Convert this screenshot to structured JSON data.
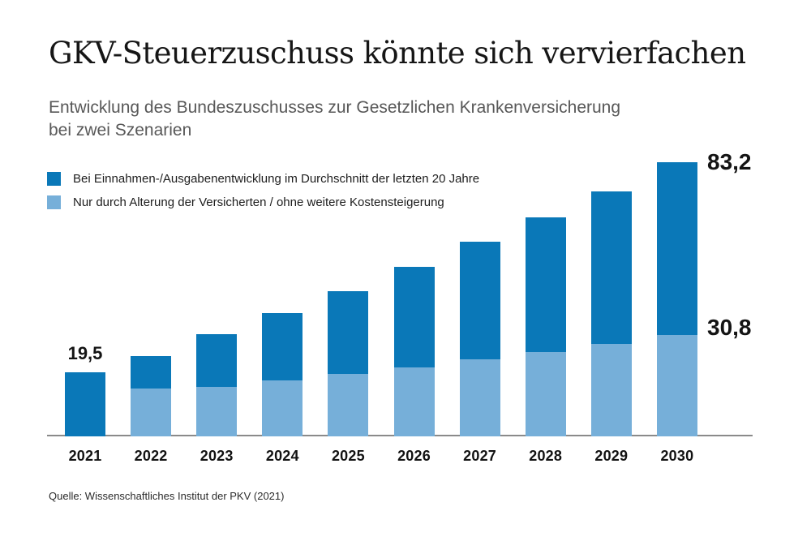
{
  "header": {
    "title": "GKV-Steuerzuschuss könnte sich vervierfachen",
    "subtitle_line1": "Entwicklung des Bundeszuschusses zur Gesetzlichen Krankenversicherung",
    "subtitle_line2": "bei zwei Szenarien"
  },
  "legend": {
    "items": [
      {
        "label": "Bei Einnahmen-/Ausgabenentwicklung im Durchschnitt der letzten 20 Jahre",
        "color": "#0a78b8"
      },
      {
        "label": "Nur durch Alterung der Versicherten / ohne weitere Kostensteigerung",
        "color": "#76afd9"
      }
    ]
  },
  "chart_data": {
    "type": "bar",
    "title": "GKV-Steuerzuschuss könnte sich vervierfachen",
    "subtitle": "Entwicklung des Bundeszuschusses zur Gesetzlichen Krankenversicherung bei zwei Szenarien",
    "categories": [
      "2021",
      "2022",
      "2023",
      "2024",
      "2025",
      "2026",
      "2027",
      "2028",
      "2029",
      "2030"
    ],
    "series": [
      {
        "name": "Bei Einnahmen-/Ausgabenentwicklung im Durchschnitt der letzten 20 Jahre",
        "color": "#0a78b8",
        "values": [
          19.5,
          24.5,
          31.0,
          37.5,
          44.0,
          51.5,
          59.0,
          66.5,
          74.5,
          83.2
        ]
      },
      {
        "name": "Nur durch Alterung der Versicherten / ohne weitere Kostensteigerung",
        "color": "#76afd9",
        "values": [
          null,
          14.5,
          15.0,
          17.0,
          19.0,
          21.0,
          23.5,
          25.5,
          28.0,
          30.8
        ]
      }
    ],
    "bar_encoding": "overlay-from-baseline: series 1 is full bar height, series 2 overlays the lower portion of the bar",
    "annotations": [
      {
        "text": "19,5",
        "target": "2021 total"
      },
      {
        "text": "83,2",
        "target": "2030 total"
      },
      {
        "text": "30,8",
        "target": "2030 aging-only"
      }
    ],
    "xlabel": "",
    "ylabel": "",
    "ylim": [
      0,
      90
    ],
    "grid": false,
    "value_axis_visible": false,
    "legend_position": "top-left"
  },
  "colors": {
    "dark_blue": "#0a78b8",
    "light_blue": "#76afd9",
    "axis_gray": "#8a8a8a"
  },
  "footer": {
    "source": "Quelle: Wissenschaftliches Institut der PKV (2021)"
  }
}
